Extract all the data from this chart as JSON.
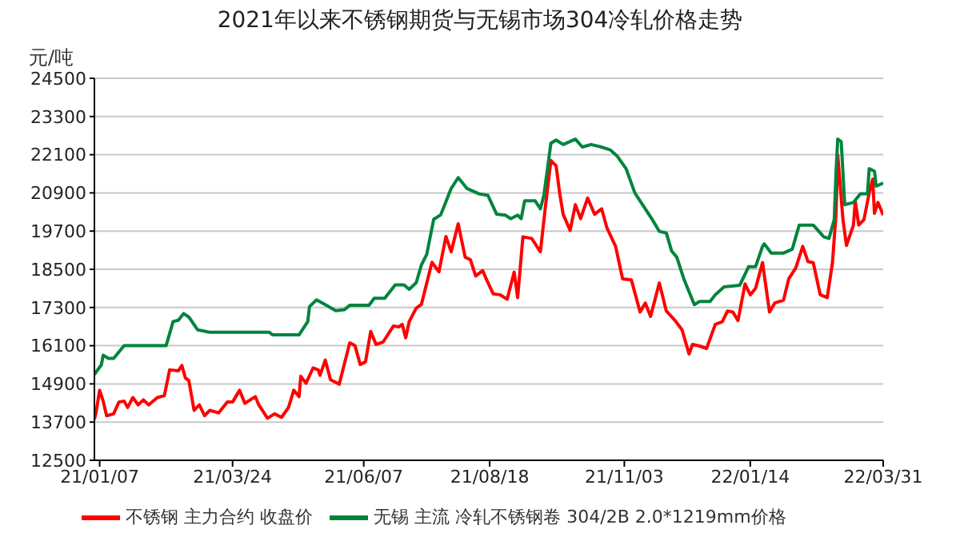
{
  "chart_data": {
    "type": "line",
    "title": "2021年以来不锈钢期货与无锡市场304冷轧价格走势",
    "ylabel": "元/吨",
    "xlim": [
      "2021-01-04",
      "2022-03-31"
    ],
    "xticks": [
      {
        "value": "2021-01-07",
        "label": "21/01/07"
      },
      {
        "value": "2021-03-24",
        "label": "21/03/24"
      },
      {
        "value": "2021-06-07",
        "label": "21/06/07"
      },
      {
        "value": "2021-08-18",
        "label": "21/08/18"
      },
      {
        "value": "2021-11-03",
        "label": "21/11/03"
      },
      {
        "value": "2022-01-14",
        "label": "22/01/14"
      },
      {
        "value": "2022-03-31",
        "label": "22/03/31"
      }
    ],
    "ylim": [
      12500,
      24500
    ],
    "yticks": [
      12500,
      13700,
      14900,
      16100,
      17300,
      18500,
      19700,
      20900,
      22100,
      23300,
      24500
    ],
    "grid": "y",
    "legend": "bottom",
    "marker": "none",
    "line_style": "solid",
    "series": [
      {
        "name": "不锈钢 主力合约 收盘价",
        "color": "#ff0000",
        "x": [
          "2021-01-04",
          "2021-01-05",
          "2021-01-07",
          "2021-01-09",
          "2021-01-11",
          "2021-01-15",
          "2021-01-18",
          "2021-01-21",
          "2021-01-23",
          "2021-01-26",
          "2021-01-29",
          "2021-02-01",
          "2021-02-04",
          "2021-02-09",
          "2021-02-13",
          "2021-02-16",
          "2021-02-21",
          "2021-02-23",
          "2021-02-25",
          "2021-02-27",
          "2021-03-02",
          "2021-03-05",
          "2021-03-08",
          "2021-03-11",
          "2021-03-16",
          "2021-03-21",
          "2021-03-24",
          "2021-03-28",
          "2021-03-31",
          "2021-04-06",
          "2021-04-08",
          "2021-04-13",
          "2021-04-17",
          "2021-04-21",
          "2021-04-25",
          "2021-04-28",
          "2021-05-01",
          "2021-05-02",
          "2021-05-05",
          "2021-05-09",
          "2021-05-12",
          "2021-05-13",
          "2021-05-16",
          "2021-05-19",
          "2021-05-24",
          "2021-05-30",
          "2021-06-02",
          "2021-06-05",
          "2021-06-08",
          "2021-06-11",
          "2021-06-14",
          "2021-06-18",
          "2021-06-24",
          "2021-06-27",
          "2021-06-29",
          "2021-07-01",
          "2021-07-03",
          "2021-07-07",
          "2021-07-10",
          "2021-07-16",
          "2021-07-20",
          "2021-07-24",
          "2021-07-27",
          "2021-07-31",
          "2021-08-04",
          "2021-08-07",
          "2021-08-10",
          "2021-08-14",
          "2021-08-16",
          "2021-08-20",
          "2021-08-24",
          "2021-08-28",
          "2021-09-01",
          "2021-09-03",
          "2021-09-06",
          "2021-09-11",
          "2021-09-16",
          "2021-09-19",
          "2021-09-22",
          "2021-09-25",
          "2021-09-27",
          "2021-09-29",
          "2021-10-03",
          "2021-10-06",
          "2021-10-09",
          "2021-10-13",
          "2021-10-17",
          "2021-10-21",
          "2021-10-24",
          "2021-10-29",
          "2021-11-02",
          "2021-11-07",
          "2021-11-12",
          "2021-11-15",
          "2021-11-18",
          "2021-11-23",
          "2021-11-27",
          "2021-12-02",
          "2021-12-06",
          "2021-12-10",
          "2021-12-12",
          "2021-12-16",
          "2021-12-20",
          "2021-12-25",
          "2021-12-29",
          "2022-01-01",
          "2022-01-04",
          "2022-01-07",
          "2022-01-11",
          "2022-01-14",
          "2022-01-17",
          "2022-01-21",
          "2022-01-25",
          "2022-01-28",
          "2022-02-02",
          "2022-02-05",
          "2022-02-09",
          "2022-02-13",
          "2022-02-16",
          "2022-02-19",
          "2022-02-23",
          "2022-02-27",
          "2022-03-02",
          "2022-03-04",
          "2022-03-05",
          "2022-03-08",
          "2022-03-10",
          "2022-03-14",
          "2022-03-15",
          "2022-03-17",
          "2022-03-20",
          "2022-03-23",
          "2022-03-25",
          "2022-03-26",
          "2022-03-28",
          "2022-03-31"
        ],
        "values": [
          13790,
          14020,
          14700,
          14360,
          13900,
          13960,
          14330,
          14360,
          14160,
          14470,
          14240,
          14400,
          14240,
          14470,
          14530,
          15340,
          15310,
          15480,
          15090,
          15000,
          14070,
          14240,
          13900,
          14070,
          13990,
          14330,
          14330,
          14700,
          14290,
          14500,
          14240,
          13820,
          13960,
          13850,
          14160,
          14700,
          14500,
          15140,
          14920,
          15400,
          15340,
          15170,
          15650,
          15030,
          14890,
          16190,
          16100,
          15510,
          15590,
          16550,
          16140,
          16210,
          16720,
          16690,
          16770,
          16350,
          16860,
          17280,
          17400,
          18720,
          18420,
          19530,
          19050,
          19930,
          18880,
          18800,
          18290,
          18460,
          18200,
          17730,
          17700,
          17560,
          18410,
          17610,
          19520,
          19470,
          19050,
          20530,
          21920,
          21750,
          20900,
          20230,
          19720,
          20530,
          20090,
          20740,
          20230,
          20400,
          19810,
          19220,
          18200,
          18170,
          17160,
          17440,
          17020,
          18070,
          17190,
          16890,
          16600,
          15840,
          16140,
          16090,
          16010,
          16770,
          16850,
          17190,
          17160,
          16890,
          18040,
          17700,
          17900,
          18710,
          17160,
          17440,
          17530,
          18200,
          18540,
          19220,
          18740,
          18710,
          17700,
          17610,
          18710,
          20230,
          22090,
          20060,
          19250,
          19890,
          20650,
          19890,
          20060,
          20900,
          21330,
          20260,
          20600,
          20200
        ]
      },
      {
        "name": "无锡 主流 冷轧不锈钢卷 304/2B 2.0*1219mm价格",
        "color": "#00843d",
        "x": [
          "2021-01-04",
          "2021-01-08",
          "2021-01-09",
          "2021-01-12",
          "2021-01-15",
          "2021-01-21",
          "2021-02-14",
          "2021-02-18",
          "2021-02-21",
          "2021-02-24",
          "2021-02-27",
          "2021-03-04",
          "2021-03-11",
          "2021-04-14",
          "2021-04-16",
          "2021-05-01",
          "2021-05-06",
          "2021-05-07",
          "2021-05-11",
          "2021-05-15",
          "2021-05-22",
          "2021-05-27",
          "2021-05-30",
          "2021-06-10",
          "2021-06-13",
          "2021-06-19",
          "2021-06-25",
          "2021-06-30",
          "2021-07-03",
          "2021-07-07",
          "2021-07-10",
          "2021-07-13",
          "2021-07-17",
          "2021-07-21",
          "2021-07-27",
          "2021-07-31",
          "2021-08-05",
          "2021-08-12",
          "2021-08-17",
          "2021-08-22",
          "2021-08-27",
          "2021-08-30",
          "2021-09-03",
          "2021-09-05",
          "2021-09-07",
          "2021-09-13",
          "2021-09-16",
          "2021-09-18",
          "2021-09-22",
          "2021-09-25",
          "2021-09-29",
          "2021-10-06",
          "2021-10-10",
          "2021-10-15",
          "2021-10-21",
          "2021-10-26",
          "2021-10-30",
          "2021-11-04",
          "2021-11-09",
          "2021-11-14",
          "2021-11-19",
          "2021-11-23",
          "2021-11-27",
          "2021-11-30",
          "2021-12-03",
          "2021-12-07",
          "2021-12-13",
          "2021-12-16",
          "2021-12-22",
          "2021-12-25",
          "2021-12-30",
          "2022-01-08",
          "2022-01-12",
          "2022-01-13",
          "2022-01-17",
          "2022-01-21",
          "2022-01-22",
          "2022-01-26",
          "2022-02-02",
          "2022-02-07",
          "2022-02-11",
          "2022-02-19",
          "2022-02-25",
          "2022-02-28",
          "2022-03-03",
          "2022-03-04",
          "2022-03-05",
          "2022-03-07",
          "2022-03-09",
          "2022-03-14",
          "2022-03-18",
          "2022-03-22",
          "2022-03-23",
          "2022-03-26",
          "2022-03-27",
          "2022-03-31"
        ],
        "values": [
          15200,
          15500,
          15800,
          15700,
          15700,
          16100,
          16100,
          16860,
          16900,
          17110,
          17000,
          16600,
          16520,
          16520,
          16440,
          16440,
          16860,
          17330,
          17540,
          17420,
          17200,
          17230,
          17370,
          17370,
          17590,
          17590,
          18010,
          18010,
          17870,
          18080,
          18640,
          18970,
          20070,
          20210,
          21040,
          21380,
          21040,
          20870,
          20820,
          20230,
          20200,
          20090,
          20200,
          20090,
          20650,
          20650,
          20400,
          20820,
          22460,
          22560,
          22420,
          22590,
          22340,
          22420,
          22340,
          22250,
          22050,
          21660,
          20900,
          20480,
          20060,
          19690,
          19640,
          19080,
          18880,
          18200,
          17390,
          17490,
          17490,
          17700,
          17950,
          18000,
          18460,
          18580,
          18580,
          19220,
          19300,
          19010,
          19010,
          19130,
          19890,
          19890,
          19520,
          19470,
          20060,
          21500,
          22590,
          22510,
          20530,
          20600,
          20870,
          20870,
          21660,
          21580,
          21110,
          21210
        ]
      }
    ]
  }
}
